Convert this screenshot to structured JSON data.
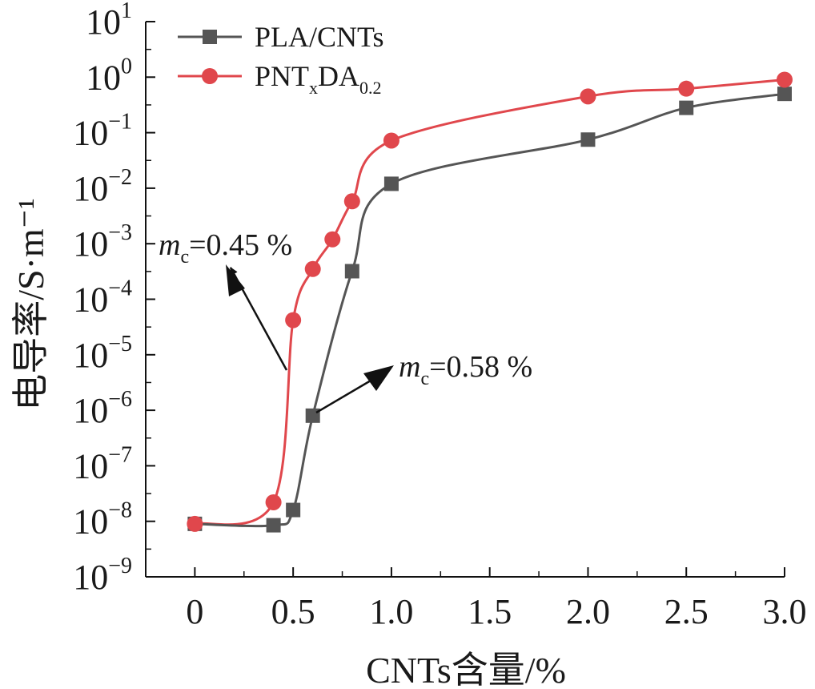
{
  "chart_data": {
    "type": "scatter",
    "y_scale": "log",
    "xlabel": "CNTs含量/%",
    "ylabel": "电导率/S·m⁻¹",
    "xlim": [
      -0.25,
      3.0
    ],
    "ylim": [
      1e-09,
      10
    ],
    "x_ticks": [
      0,
      0.5,
      1.0,
      1.5,
      2.0,
      2.5,
      3.0
    ],
    "x_tick_labels": [
      "0",
      "0.5",
      "1.0",
      "1.5",
      "2.0",
      "2.5",
      "3.0"
    ],
    "y_tick_exponents": [
      -9,
      -8,
      -7,
      -6,
      -5,
      -4,
      -3,
      -2,
      -1,
      0,
      1
    ],
    "y_tick_base": "10",
    "grid": false,
    "legend_position": "top-left",
    "series": [
      {
        "name": "PLA/CNTs",
        "marker": "square",
        "color": "#555555",
        "x": [
          0,
          0.4,
          0.5,
          0.6,
          0.8,
          1.0,
          2.0,
          2.5,
          3.0
        ],
        "y": [
          9e-09,
          8.5e-09,
          1.6e-08,
          8e-07,
          0.00032,
          0.012,
          0.075,
          0.28,
          0.5
        ]
      },
      {
        "name_parts": {
          "pre": "PNT",
          "sub1": "x",
          "mid": "DA",
          "sub2": "0.2"
        },
        "marker": "circle",
        "color": "#e0474c",
        "x": [
          0,
          0.4,
          0.5,
          0.6,
          0.7,
          0.8,
          1.0,
          2.0,
          2.5,
          3.0
        ],
        "y": [
          9e-09,
          2.2e-08,
          4.2e-05,
          0.00035,
          0.0012,
          0.0058,
          0.072,
          0.45,
          0.62,
          0.9
        ]
      }
    ],
    "annotations": [
      {
        "main": "m",
        "sub": "c",
        "value": "=0.45 %"
      },
      {
        "main": "m",
        "sub": "c",
        "value": "=0.58 %"
      }
    ]
  }
}
